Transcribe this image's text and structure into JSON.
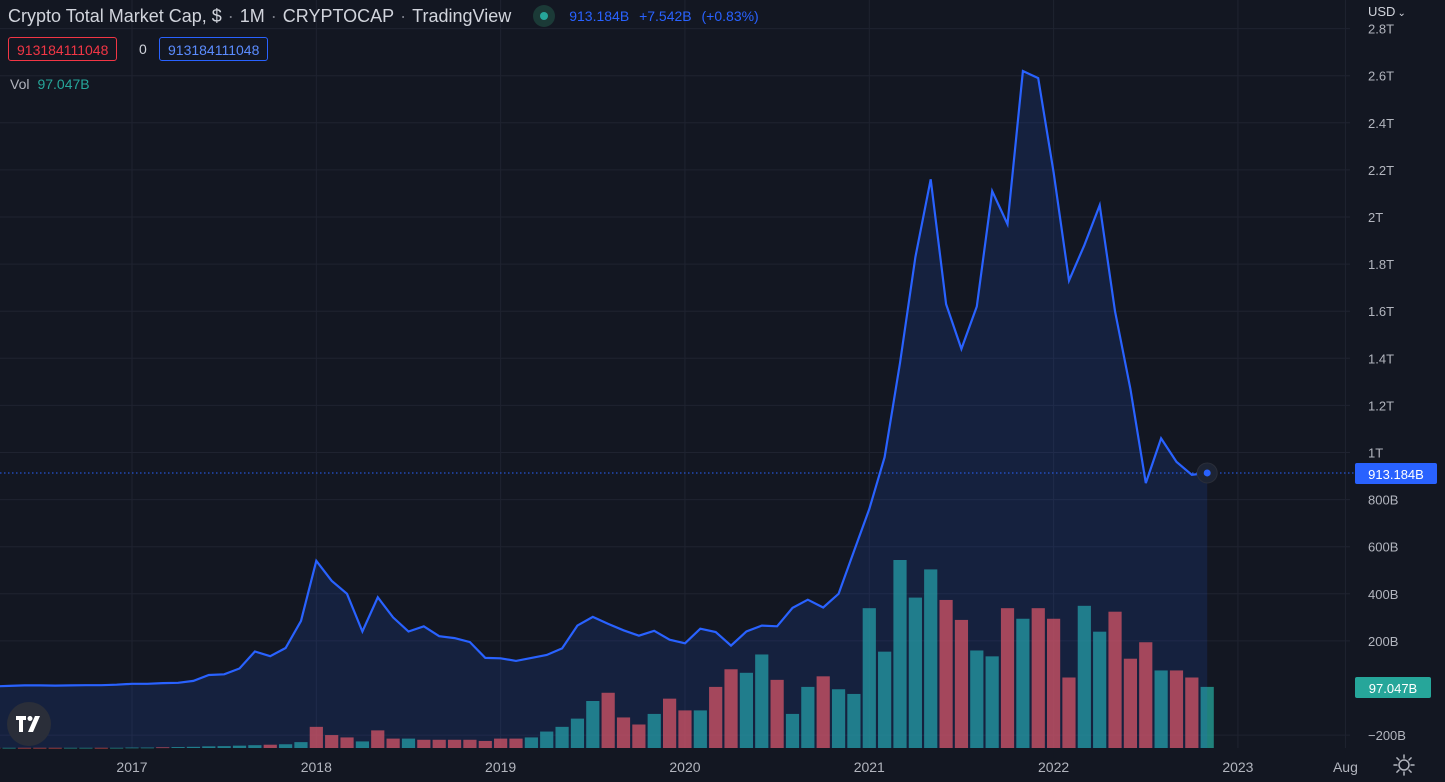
{
  "header": {
    "symbol": "Crypto Total Market Cap, $",
    "interval": "1M",
    "exchange": "CRYPTOCAP",
    "source": "TradingView",
    "status_color": "#26a69a",
    "last_value": "913.184B",
    "change": "+7.542B",
    "change_pct": "(+0.83%)"
  },
  "order": {
    "sell_price": "913184111048",
    "quantity": "0",
    "buy_price": "913184111048"
  },
  "volume_legend": {
    "label": "Vol",
    "value": "97.047B"
  },
  "currency_selector": "USD",
  "price_tag": "913.184B",
  "volume_tag": "97.047B",
  "colors": {
    "background": "#131722",
    "line": "#2962ff",
    "volume_up": "#26a69a",
    "volume_down": "#ef5350",
    "grid": "#1f2330"
  },
  "icons": {
    "logo": "tradingview-logo-icon",
    "settings": "gear-icon",
    "dropdown": "chevron-down-icon"
  },
  "chart_data": {
    "type": "line",
    "ylim": [
      -200,
      2800
    ],
    "y_ticks": [
      -200,
      200,
      400,
      600,
      800,
      1000,
      1200,
      1400,
      1600,
      1800,
      2000,
      2200,
      2400,
      2600,
      2800
    ],
    "y_tick_labels": [
      "−200B",
      "200B",
      "400B",
      "600B",
      "800B",
      "1T",
      "1.2T",
      "1.4T",
      "1.6T",
      "1.8T",
      "2T",
      "2.2T",
      "2.4T",
      "2.6T",
      "2.8T"
    ],
    "x_tick_labels": [
      "2017",
      "2018",
      "2019",
      "2020",
      "2021",
      "2022",
      "2023",
      "Aug"
    ],
    "x_ticks": [
      "2017-01",
      "2018-01",
      "2019-01",
      "2020-01",
      "2021-01",
      "2022-01",
      "2023-01",
      "2023-08"
    ],
    "x_start": "2016-04",
    "x_end": "2023-10",
    "grid": true,
    "series": [
      {
        "type": "line",
        "values": [
          {
            "x": "2016-04",
            "y": 7
          },
          {
            "x": "2016-05",
            "y": 9
          },
          {
            "x": "2016-06",
            "y": 11
          },
          {
            "x": "2016-07",
            "y": 11
          },
          {
            "x": "2016-08",
            "y": 10
          },
          {
            "x": "2016-09",
            "y": 11
          },
          {
            "x": "2016-10",
            "y": 12
          },
          {
            "x": "2016-11",
            "y": 12
          },
          {
            "x": "2016-12",
            "y": 14
          },
          {
            "x": "2017-01",
            "y": 18
          },
          {
            "x": "2017-02",
            "y": 18
          },
          {
            "x": "2017-03",
            "y": 21
          },
          {
            "x": "2017-04",
            "y": 22
          },
          {
            "x": "2017-05",
            "y": 30
          },
          {
            "x": "2017-06",
            "y": 55
          },
          {
            "x": "2017-07",
            "y": 58
          },
          {
            "x": "2017-08",
            "y": 83
          },
          {
            "x": "2017-09",
            "y": 155
          },
          {
            "x": "2017-10",
            "y": 135
          },
          {
            "x": "2017-11",
            "y": 170
          },
          {
            "x": "2017-12",
            "y": 285
          },
          {
            "x": "2018-01",
            "y": 540
          },
          {
            "x": "2018-02",
            "y": 455
          },
          {
            "x": "2018-03",
            "y": 400
          },
          {
            "x": "2018-04",
            "y": 240
          },
          {
            "x": "2018-05",
            "y": 385
          },
          {
            "x": "2018-06",
            "y": 300
          },
          {
            "x": "2018-07",
            "y": 240
          },
          {
            "x": "2018-08",
            "y": 262
          },
          {
            "x": "2018-09",
            "y": 220
          },
          {
            "x": "2018-10",
            "y": 212
          },
          {
            "x": "2018-11",
            "y": 195
          },
          {
            "x": "2018-12",
            "y": 128
          },
          {
            "x": "2019-01",
            "y": 126
          },
          {
            "x": "2019-02",
            "y": 115
          },
          {
            "x": "2019-03",
            "y": 128
          },
          {
            "x": "2019-04",
            "y": 140
          },
          {
            "x": "2019-05",
            "y": 168
          },
          {
            "x": "2019-06",
            "y": 265
          },
          {
            "x": "2019-07",
            "y": 302
          },
          {
            "x": "2019-08",
            "y": 272
          },
          {
            "x": "2019-09",
            "y": 245
          },
          {
            "x": "2019-10",
            "y": 222
          },
          {
            "x": "2019-11",
            "y": 243
          },
          {
            "x": "2019-12",
            "y": 205
          },
          {
            "x": "2020-01",
            "y": 190
          },
          {
            "x": "2020-02",
            "y": 252
          },
          {
            "x": "2020-03",
            "y": 238
          },
          {
            "x": "2020-04",
            "y": 180
          },
          {
            "x": "2020-05",
            "y": 240
          },
          {
            "x": "2020-06",
            "y": 265
          },
          {
            "x": "2020-07",
            "y": 262
          },
          {
            "x": "2020-08",
            "y": 340
          },
          {
            "x": "2020-09",
            "y": 375
          },
          {
            "x": "2020-10",
            "y": 342
          },
          {
            "x": "2020-11",
            "y": 400
          },
          {
            "x": "2020-12",
            "y": 580
          },
          {
            "x": "2021-01",
            "y": 760
          },
          {
            "x": "2021-02",
            "y": 980
          },
          {
            "x": "2021-03",
            "y": 1380
          },
          {
            "x": "2021-04",
            "y": 1830
          },
          {
            "x": "2021-05",
            "y": 2160
          },
          {
            "x": "2021-06",
            "y": 1630
          },
          {
            "x": "2021-07",
            "y": 1440
          },
          {
            "x": "2021-08",
            "y": 1620
          },
          {
            "x": "2021-09",
            "y": 2110
          },
          {
            "x": "2021-10",
            "y": 1970
          },
          {
            "x": "2021-11",
            "y": 2620
          },
          {
            "x": "2021-12",
            "y": 2590
          },
          {
            "x": "2022-01",
            "y": 2190
          },
          {
            "x": "2022-02",
            "y": 1730
          },
          {
            "x": "2022-03",
            "y": 1880
          },
          {
            "x": "2022-04",
            "y": 2050
          },
          {
            "x": "2022-05",
            "y": 1600
          },
          {
            "x": "2022-06",
            "y": 1270
          },
          {
            "x": "2022-07",
            "y": 870
          },
          {
            "x": "2022-08",
            "y": 1060
          },
          {
            "x": "2022-09",
            "y": 960
          },
          {
            "x": "2022-10",
            "y": 905
          },
          {
            "x": "2022-11",
            "y": 913.184
          }
        ]
      },
      {
        "type": "bar",
        "values": [
          {
            "x": "2016-04",
            "y": 1,
            "dir": "down"
          },
          {
            "x": "2016-05",
            "y": 1,
            "dir": "up"
          },
          {
            "x": "2016-06",
            "y": 1,
            "dir": "down"
          },
          {
            "x": "2016-07",
            "y": 1,
            "dir": "down"
          },
          {
            "x": "2016-08",
            "y": 1,
            "dir": "down"
          },
          {
            "x": "2016-09",
            "y": 1,
            "dir": "up"
          },
          {
            "x": "2016-10",
            "y": 1,
            "dir": "up"
          },
          {
            "x": "2016-11",
            "y": 1,
            "dir": "down"
          },
          {
            "x": "2016-12",
            "y": 1,
            "dir": "up"
          },
          {
            "x": "2017-01",
            "y": 2,
            "dir": "up"
          },
          {
            "x": "2017-02",
            "y": 2,
            "dir": "up"
          },
          {
            "x": "2017-03",
            "y": 3,
            "dir": "down"
          },
          {
            "x": "2017-04",
            "y": 4,
            "dir": "up"
          },
          {
            "x": "2017-05",
            "y": 5,
            "dir": "up"
          },
          {
            "x": "2017-06",
            "y": 7,
            "dir": "up"
          },
          {
            "x": "2017-07",
            "y": 8,
            "dir": "up"
          },
          {
            "x": "2017-08",
            "y": 10,
            "dir": "up"
          },
          {
            "x": "2017-09",
            "y": 12,
            "dir": "up"
          },
          {
            "x": "2017-10",
            "y": 14,
            "dir": "down"
          },
          {
            "x": "2017-11",
            "y": 16,
            "dir": "up"
          },
          {
            "x": "2017-12",
            "y": 25,
            "dir": "up"
          },
          {
            "x": "2018-01",
            "y": 90,
            "dir": "down"
          },
          {
            "x": "2018-02",
            "y": 55,
            "dir": "down"
          },
          {
            "x": "2018-03",
            "y": 45,
            "dir": "down"
          },
          {
            "x": "2018-04",
            "y": 28,
            "dir": "up"
          },
          {
            "x": "2018-05",
            "y": 75,
            "dir": "down"
          },
          {
            "x": "2018-06",
            "y": 40,
            "dir": "down"
          },
          {
            "x": "2018-07",
            "y": 40,
            "dir": "up"
          },
          {
            "x": "2018-08",
            "y": 35,
            "dir": "down"
          },
          {
            "x": "2018-09",
            "y": 35,
            "dir": "down"
          },
          {
            "x": "2018-10",
            "y": 35,
            "dir": "down"
          },
          {
            "x": "2018-11",
            "y": 35,
            "dir": "down"
          },
          {
            "x": "2018-12",
            "y": 30,
            "dir": "down"
          },
          {
            "x": "2019-01",
            "y": 40,
            "dir": "down"
          },
          {
            "x": "2019-02",
            "y": 40,
            "dir": "down"
          },
          {
            "x": "2019-03",
            "y": 45,
            "dir": "up"
          },
          {
            "x": "2019-04",
            "y": 70,
            "dir": "up"
          },
          {
            "x": "2019-05",
            "y": 90,
            "dir": "up"
          },
          {
            "x": "2019-06",
            "y": 125,
            "dir": "up"
          },
          {
            "x": "2019-07",
            "y": 200,
            "dir": "up"
          },
          {
            "x": "2019-08",
            "y": 235,
            "dir": "down"
          },
          {
            "x": "2019-09",
            "y": 130,
            "dir": "down"
          },
          {
            "x": "2019-10",
            "y": 100,
            "dir": "down"
          },
          {
            "x": "2019-11",
            "y": 145,
            "dir": "up"
          },
          {
            "x": "2019-12",
            "y": 210,
            "dir": "down"
          },
          {
            "x": "2020-01",
            "y": 160,
            "dir": "down"
          },
          {
            "x": "2020-02",
            "y": 160,
            "dir": "up"
          },
          {
            "x": "2020-03",
            "y": 260,
            "dir": "down"
          },
          {
            "x": "2020-04",
            "y": 335,
            "dir": "down"
          },
          {
            "x": "2020-05",
            "y": 320,
            "dir": "up"
          },
          {
            "x": "2020-06",
            "y": 398,
            "dir": "up"
          },
          {
            "x": "2020-07",
            "y": 290,
            "dir": "down"
          },
          {
            "x": "2020-08",
            "y": 145,
            "dir": "up"
          },
          {
            "x": "2020-09",
            "y": 260,
            "dir": "up"
          },
          {
            "x": "2020-10",
            "y": 305,
            "dir": "down"
          },
          {
            "x": "2020-11",
            "y": 250,
            "dir": "up"
          },
          {
            "x": "2020-12",
            "y": 230,
            "dir": "up"
          },
          {
            "x": "2021-01",
            "y": 595,
            "dir": "up"
          },
          {
            "x": "2021-02",
            "y": 410,
            "dir": "up"
          },
          {
            "x": "2021-03",
            "y": 800,
            "dir": "up"
          },
          {
            "x": "2021-04",
            "y": 640,
            "dir": "up"
          },
          {
            "x": "2021-05",
            "y": 760,
            "dir": "up"
          },
          {
            "x": "2021-06",
            "y": 630,
            "dir": "down"
          },
          {
            "x": "2021-07",
            "y": 545,
            "dir": "down"
          },
          {
            "x": "2021-08",
            "y": 415,
            "dir": "up"
          },
          {
            "x": "2021-09",
            "y": 390,
            "dir": "up"
          },
          {
            "x": "2021-10",
            "y": 595,
            "dir": "down"
          },
          {
            "x": "2021-11",
            "y": 550,
            "dir": "up"
          },
          {
            "x": "2021-12",
            "y": 595,
            "dir": "down"
          },
          {
            "x": "2022-01",
            "y": 550,
            "dir": "down"
          },
          {
            "x": "2022-02",
            "y": 300,
            "dir": "down"
          },
          {
            "x": "2022-03",
            "y": 605,
            "dir": "up"
          },
          {
            "x": "2022-04",
            "y": 495,
            "dir": "up"
          },
          {
            "x": "2022-05",
            "y": 580,
            "dir": "down"
          },
          {
            "x": "2022-06",
            "y": 380,
            "dir": "down"
          },
          {
            "x": "2022-07",
            "y": 450,
            "dir": "down"
          },
          {
            "x": "2022-08",
            "y": 330,
            "dir": "up"
          },
          {
            "x": "2022-09",
            "y": 330,
            "dir": "down"
          },
          {
            "x": "2022-10",
            "y": 300,
            "dir": "down"
          },
          {
            "x": "2022-11",
            "y": 260,
            "dir": "up"
          }
        ]
      }
    ]
  }
}
